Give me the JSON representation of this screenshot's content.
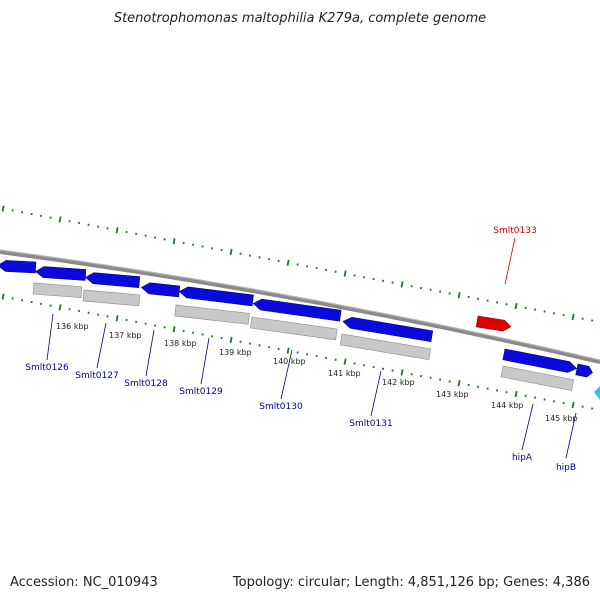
{
  "title": "Stenotrophomonas maltophilia K279a, complete genome",
  "footer": {
    "accession": "Accession: NC_010943",
    "summary": "Topology: circular; Length: 4,851,126 bp; Genes: 4,386"
  },
  "colors": {
    "forward_gene": "#0a0adc",
    "highlight_gene": "#e00000",
    "partial_gene": "#28c8e6",
    "pseudo_feature": "#c8c8c8",
    "backbone": "#8a8a8a",
    "ticks": "#1f7a1f",
    "label_blue": "#00008b",
    "label_red": "#cc0000"
  },
  "ticks": [
    {
      "label": "136 kbp"
    },
    {
      "label": "137 kbp"
    },
    {
      "label": "138 kbp"
    },
    {
      "label": "139 kbp"
    },
    {
      "label": "140 kbp"
    },
    {
      "label": "141 kbp"
    },
    {
      "label": "142 kbp"
    },
    {
      "label": "143 kbp"
    },
    {
      "label": "144 kbp"
    },
    {
      "label": "145 kbp"
    }
  ],
  "gene_labels": [
    {
      "name": "Smlt0126",
      "color": "blue"
    },
    {
      "name": "Smlt0127",
      "color": "blue"
    },
    {
      "name": "Smlt0128",
      "color": "blue"
    },
    {
      "name": "Smlt0129",
      "color": "blue"
    },
    {
      "name": "Smlt0130",
      "color": "blue"
    },
    {
      "name": "Smlt0131",
      "color": "blue"
    },
    {
      "name": "hipA",
      "color": "blue"
    },
    {
      "name": "hipB",
      "color": "blue"
    },
    {
      "name": "Smlt0133",
      "color": "red"
    }
  ]
}
